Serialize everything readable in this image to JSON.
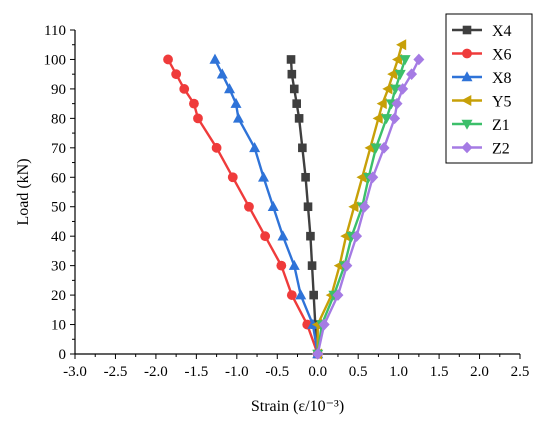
{
  "chart_data": {
    "type": "line",
    "xlabel": "Strain   (ε/10⁻³)",
    "ylabel": "Load  (kN)",
    "xlim": [
      -3.0,
      2.5
    ],
    "ylim": [
      0,
      110
    ],
    "x_ticks": [
      -3.0,
      -2.5,
      -2.0,
      -1.5,
      -1.0,
      -0.5,
      0.0,
      0.5,
      1.0,
      1.5,
      2.0,
      2.5
    ],
    "x_tick_labels": [
      "-3.0",
      "-2.5",
      "-2.0",
      "-1.5",
      "-1.0",
      "-0.5",
      "0.0",
      "0.5",
      "1.0",
      "1.5",
      "2.0",
      "2.5"
    ],
    "y_ticks": [
      0,
      10,
      20,
      30,
      40,
      50,
      60,
      70,
      80,
      90,
      100,
      110
    ],
    "y_tick_labels": [
      "0",
      "10",
      "20",
      "30",
      "40",
      "50",
      "60",
      "70",
      "80",
      "90",
      "100",
      "110"
    ],
    "grid": false,
    "legend_position": "top-right",
    "series": [
      {
        "name": "X4",
        "color": "#3f3f3f",
        "marker": "square",
        "points": [
          [
            0,
            0
          ],
          [
            -0.03,
            10
          ],
          [
            -0.05,
            20
          ],
          [
            -0.07,
            30
          ],
          [
            -0.09,
            40
          ],
          [
            -0.12,
            50
          ],
          [
            -0.15,
            60
          ],
          [
            -0.19,
            70
          ],
          [
            -0.23,
            80
          ],
          [
            -0.26,
            85
          ],
          [
            -0.29,
            90
          ],
          [
            -0.32,
            95
          ],
          [
            -0.33,
            100
          ]
        ]
      },
      {
        "name": "X6",
        "color": "#ef3b3b",
        "marker": "circle",
        "points": [
          [
            0,
            0
          ],
          [
            -0.13,
            10
          ],
          [
            -0.32,
            20
          ],
          [
            -0.45,
            30
          ],
          [
            -0.65,
            40
          ],
          [
            -0.85,
            50
          ],
          [
            -1.05,
            60
          ],
          [
            -1.25,
            70
          ],
          [
            -1.48,
            80
          ],
          [
            -1.53,
            85
          ],
          [
            -1.65,
            90
          ],
          [
            -1.75,
            95
          ],
          [
            -1.85,
            100
          ]
        ]
      },
      {
        "name": "X8",
        "color": "#2f73d8",
        "marker": "triangle-up",
        "points": [
          [
            0,
            0
          ],
          [
            -0.06,
            10
          ],
          [
            -0.21,
            20
          ],
          [
            -0.29,
            30
          ],
          [
            -0.43,
            40
          ],
          [
            -0.55,
            50
          ],
          [
            -0.67,
            60
          ],
          [
            -0.78,
            70
          ],
          [
            -0.98,
            80
          ],
          [
            -1.01,
            85
          ],
          [
            -1.09,
            90
          ],
          [
            -1.18,
            95
          ],
          [
            -1.27,
            100
          ]
        ]
      },
      {
        "name": "Y5",
        "color": "#c7a008",
        "marker": "triangle-left",
        "points": [
          [
            0,
            0
          ],
          [
            0.0,
            10
          ],
          [
            0.17,
            20
          ],
          [
            0.27,
            30
          ],
          [
            0.35,
            40
          ],
          [
            0.45,
            50
          ],
          [
            0.55,
            60
          ],
          [
            0.65,
            70
          ],
          [
            0.75,
            80
          ],
          [
            0.8,
            85
          ],
          [
            0.87,
            90
          ],
          [
            0.93,
            95
          ],
          [
            0.99,
            100
          ],
          [
            1.04,
            105
          ]
        ]
      },
      {
        "name": "Z1",
        "color": "#3cbf6a",
        "marker": "triangle-down",
        "points": [
          [
            0,
            0
          ],
          [
            0.05,
            10
          ],
          [
            0.2,
            20
          ],
          [
            0.33,
            30
          ],
          [
            0.42,
            40
          ],
          [
            0.55,
            50
          ],
          [
            0.63,
            60
          ],
          [
            0.72,
            70
          ],
          [
            0.85,
            80
          ],
          [
            0.91,
            85
          ],
          [
            0.96,
            90
          ],
          [
            1.02,
            95
          ],
          [
            1.08,
            100
          ]
        ]
      },
      {
        "name": "Z2",
        "color": "#a57be4",
        "marker": "diamond",
        "points": [
          [
            0,
            0
          ],
          [
            0.08,
            10
          ],
          [
            0.25,
            20
          ],
          [
            0.36,
            30
          ],
          [
            0.48,
            40
          ],
          [
            0.58,
            50
          ],
          [
            0.68,
            60
          ],
          [
            0.82,
            70
          ],
          [
            0.95,
            80
          ],
          [
            0.98,
            85
          ],
          [
            1.05,
            90
          ],
          [
            1.16,
            95
          ],
          [
            1.25,
            100
          ]
        ]
      }
    ]
  }
}
